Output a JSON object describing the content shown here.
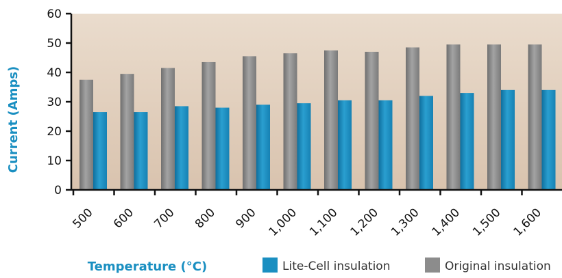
{
  "chart_data": {
    "type": "bar",
    "title": "",
    "xlabel": "Temperature (°C)",
    "ylabel": "Current (Amps)",
    "categories": [
      "500",
      "600",
      "700",
      "800",
      "900",
      "1,000",
      "1,100",
      "1,200",
      "1,300",
      "1,400",
      "1,500",
      "1,600"
    ],
    "series": [
      {
        "name": "Original insulation",
        "color": "#8c8c8c",
        "values": [
          37.5,
          39.5,
          41.5,
          43.5,
          45.5,
          46.5,
          47.5,
          47,
          48.5,
          49.5,
          49.5,
          49.5
        ]
      },
      {
        "name": "Lite-Cell insulation",
        "color": "#1a8fc1",
        "values": [
          26.5,
          26.5,
          28.5,
          28,
          29,
          29.5,
          30.5,
          30.5,
          32,
          33,
          34,
          34
        ]
      }
    ],
    "yticks": [
      "0",
      "10",
      "20",
      "30",
      "40",
      "50",
      "60"
    ],
    "ylim": [
      0,
      60
    ],
    "legend": {
      "position": "bottom",
      "items": [
        {
          "label": "Lite-Cell insulation",
          "color": "#1a8fc1"
        },
        {
          "label": "Original insulation",
          "color": "#8c8c8c"
        }
      ]
    },
    "plot_background": "#e8d8c8",
    "grid": false
  }
}
